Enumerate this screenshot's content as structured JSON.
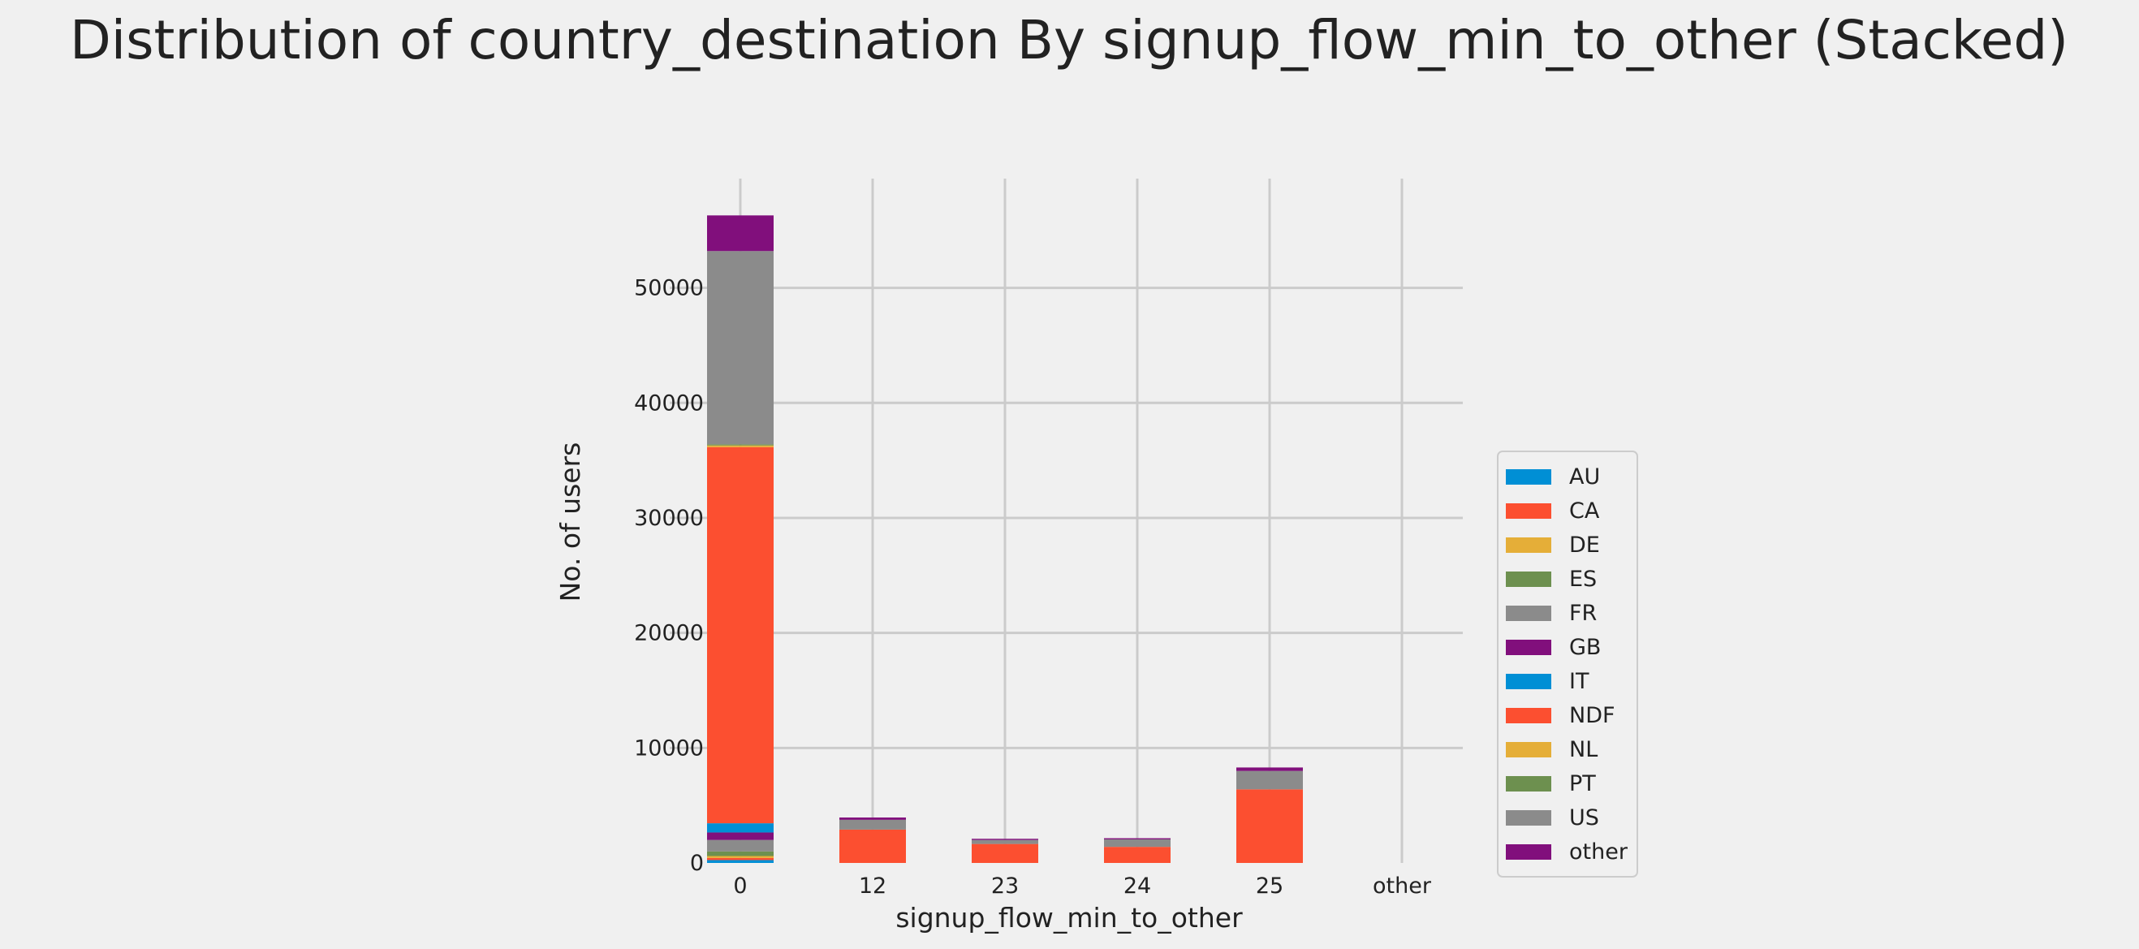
{
  "chart_data": {
    "type": "bar",
    "stacked": true,
    "title": "Distribution of country_destination By signup_flow_min_to_other (Stacked)",
    "xlabel": "signup_flow_min_to_other",
    "ylabel": "No. of users",
    "categories": [
      "0",
      "12",
      "23",
      "24",
      "25",
      "other"
    ],
    "yticks": [
      0,
      10000,
      20000,
      30000,
      40000,
      50000
    ],
    "ylim": [
      0,
      59500
    ],
    "grid": true,
    "legend_position": "center-right",
    "series": [
      {
        "name": "AU",
        "color": "#008fd5",
        "values": [
          250,
          0,
          0,
          0,
          0,
          0
        ]
      },
      {
        "name": "CA",
        "color": "#fc4f30",
        "values": [
          180,
          0,
          0,
          0,
          0,
          0
        ]
      },
      {
        "name": "DE",
        "color": "#e5ae38",
        "values": [
          170,
          0,
          0,
          0,
          0,
          0
        ]
      },
      {
        "name": "ES",
        "color": "#6d904f",
        "values": [
          400,
          0,
          0,
          0,
          0,
          0
        ]
      },
      {
        "name": "FR",
        "color": "#8b8b8b",
        "values": [
          1000,
          0,
          0,
          0,
          0,
          0
        ]
      },
      {
        "name": "GB",
        "color": "#810f7c",
        "values": [
          650,
          0,
          0,
          0,
          0,
          0
        ]
      },
      {
        "name": "IT",
        "color": "#008fd5",
        "values": [
          800,
          0,
          0,
          0,
          0,
          0
        ]
      },
      {
        "name": "NDF",
        "color": "#fc4f30",
        "values": [
          32700,
          2900,
          1650,
          1400,
          6400,
          0
        ]
      },
      {
        "name": "NL",
        "color": "#e5ae38",
        "values": [
          150,
          0,
          0,
          0,
          0,
          0
        ]
      },
      {
        "name": "PT",
        "color": "#6d904f",
        "values": [
          100,
          0,
          0,
          0,
          0,
          0
        ]
      },
      {
        "name": "US",
        "color": "#8b8b8b",
        "values": [
          16800,
          850,
          350,
          650,
          1600,
          0
        ]
      },
      {
        "name": "other",
        "color": "#810f7c",
        "values": [
          3100,
          200,
          100,
          100,
          300,
          0
        ]
      }
    ]
  }
}
